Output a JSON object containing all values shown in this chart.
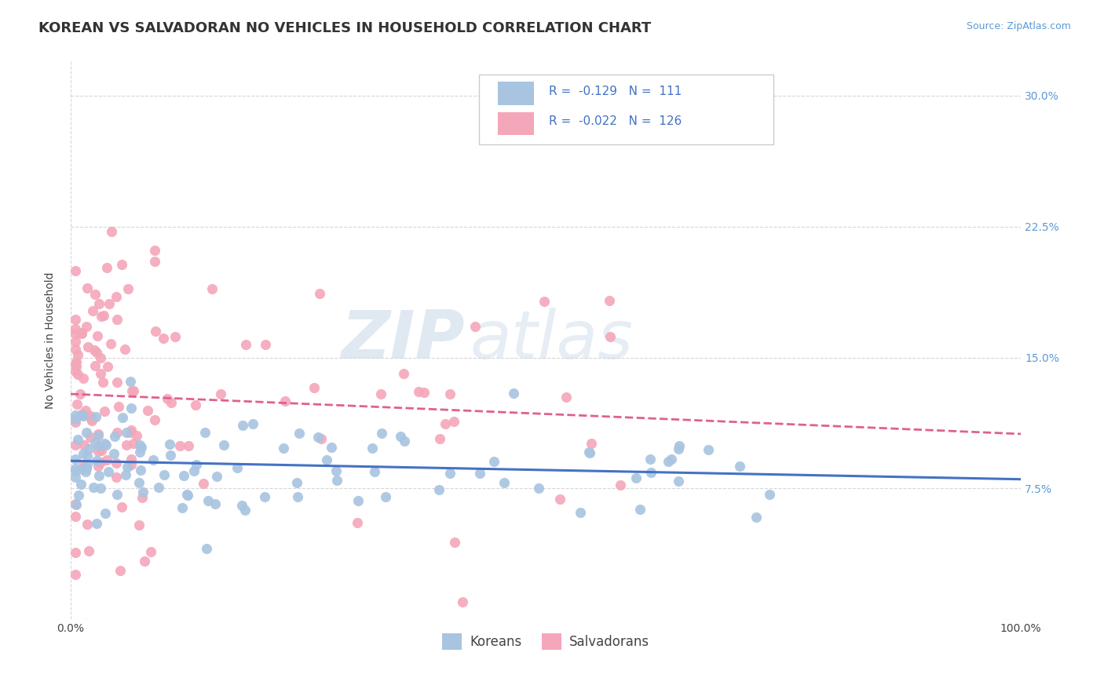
{
  "title": "KOREAN VS SALVADORAN NO VEHICLES IN HOUSEHOLD CORRELATION CHART",
  "source": "Source: ZipAtlas.com",
  "ylabel": "No Vehicles in Household",
  "xlim": [
    0.0,
    1.0
  ],
  "ylim": [
    0.0,
    0.32
  ],
  "korean_color": "#a8c4e0",
  "salvadoran_color": "#f4a7b9",
  "korean_line_color": "#4472c4",
  "salvadoran_line_color": "#e06090",
  "korean_R": -0.129,
  "korean_N": 111,
  "salvadoran_R": -0.022,
  "salvadoran_N": 126,
  "watermark_zip": "ZIP",
  "watermark_atlas": "atlas",
  "background_color": "#ffffff",
  "grid_color": "#cccccc",
  "legend_label_korean": "Koreans",
  "legend_label_salvadoran": "Salvadorans",
  "title_fontsize": 13,
  "axis_label_fontsize": 10,
  "tick_fontsize": 10,
  "legend_fontsize": 11
}
